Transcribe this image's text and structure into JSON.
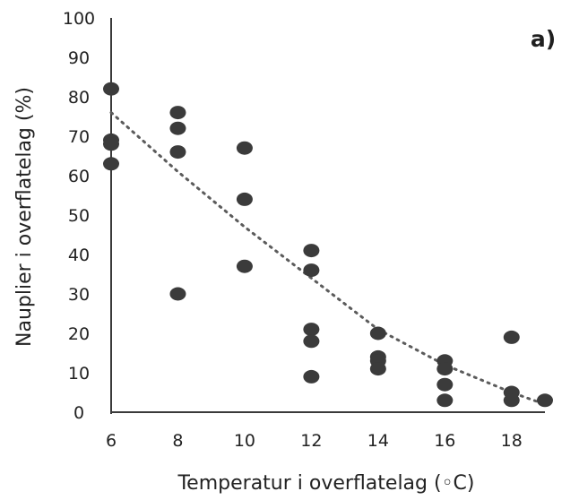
{
  "chart_data": {
    "type": "scatter",
    "panel_label": "a)",
    "xlabel": "Temperatur i overflatelag (◦C)",
    "ylabel": "Nauplier i overflatelag (%)",
    "xlim": [
      6,
      19
    ],
    "ylim": [
      0,
      100
    ],
    "x_ticks": [
      6,
      8,
      10,
      12,
      14,
      16,
      18
    ],
    "y_ticks": [
      0,
      10,
      20,
      30,
      40,
      50,
      60,
      70,
      80,
      90,
      100
    ],
    "grid": false,
    "legend": "none",
    "colors": {
      "points": "#3b3b3b",
      "axis": "#3a3a3a",
      "trendline": "#5b5b5b",
      "text": "#222222"
    },
    "points": [
      {
        "x": 6,
        "y": 82
      },
      {
        "x": 6,
        "y": 69
      },
      {
        "x": 6,
        "y": 68
      },
      {
        "x": 6,
        "y": 63
      },
      {
        "x": 8,
        "y": 76
      },
      {
        "x": 8,
        "y": 72
      },
      {
        "x": 8,
        "y": 66
      },
      {
        "x": 8,
        "y": 30
      },
      {
        "x": 10,
        "y": 67
      },
      {
        "x": 10,
        "y": 54
      },
      {
        "x": 10,
        "y": 37
      },
      {
        "x": 12,
        "y": 41
      },
      {
        "x": 12,
        "y": 36
      },
      {
        "x": 12,
        "y": 21
      },
      {
        "x": 12,
        "y": 18
      },
      {
        "x": 12,
        "y": 9
      },
      {
        "x": 14,
        "y": 20
      },
      {
        "x": 14,
        "y": 14
      },
      {
        "x": 14,
        "y": 13
      },
      {
        "x": 14,
        "y": 11
      },
      {
        "x": 16,
        "y": 13
      },
      {
        "x": 16,
        "y": 11
      },
      {
        "x": 16,
        "y": 7
      },
      {
        "x": 16,
        "y": 3
      },
      {
        "x": 18,
        "y": 19
      },
      {
        "x": 18,
        "y": 5
      },
      {
        "x": 18,
        "y": 3
      },
      {
        "x": 19,
        "y": 3
      }
    ],
    "trendline": {
      "style": "dotted",
      "points": [
        {
          "x": 6,
          "y": 76
        },
        {
          "x": 8,
          "y": 61
        },
        {
          "x": 10,
          "y": 47
        },
        {
          "x": 12,
          "y": 34
        },
        {
          "x": 14,
          "y": 21
        },
        {
          "x": 16,
          "y": 12
        },
        {
          "x": 18,
          "y": 5
        },
        {
          "x": 19,
          "y": 2
        }
      ]
    }
  }
}
